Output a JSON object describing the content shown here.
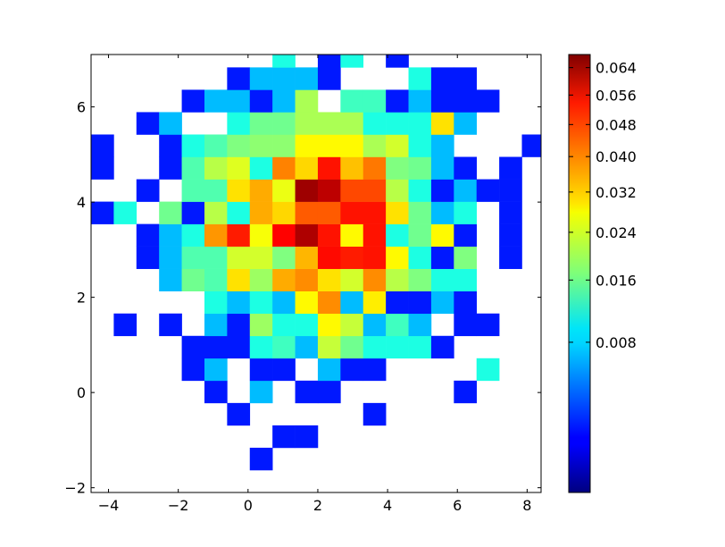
{
  "chart_data": {
    "type": "heatmap",
    "title": "",
    "xlabel": "",
    "ylabel": "",
    "xlim": [
      -4.5,
      8.4
    ],
    "ylim": [
      -2.1,
      7.1
    ],
    "x_ticks": [
      -4,
      -2,
      0,
      2,
      4,
      6,
      8
    ],
    "y_ticks": [
      -2,
      0,
      2,
      4,
      6
    ],
    "bins": {
      "x_start": -4.5,
      "x_width": 0.65,
      "y_start": -2.1,
      "y_width": 0.47,
      "nx": 20,
      "ny": 20
    },
    "colormap": "jet",
    "colorbar": {
      "scale": "sqrt",
      "vmin": 0.0,
      "vmax": 0.068,
      "ticks": [
        0.008,
        0.016,
        0.024,
        0.032,
        0.04,
        0.048,
        0.056,
        0.064
      ],
      "tick_labels": [
        "0.008",
        "0.016",
        "0.024",
        "0.032",
        "0.040",
        "0.048",
        "0.056",
        "0.064"
      ]
    },
    "cells": [
      [
        0.0,
        0.0,
        0.0,
        0.0,
        0.0,
        0.0,
        0.0,
        0.0,
        0.0,
        0.0,
        0.0,
        0.0,
        0.0,
        0.0,
        0.0,
        0.0,
        0.0,
        0.0,
        0.0,
        0.0
      ],
      [
        0.0,
        0.0,
        0.0,
        0.0,
        0.0,
        0.0,
        0.0,
        0.0015,
        0.0,
        0.0,
        0.0,
        0.0,
        0.0,
        0.0,
        0.0,
        0.0,
        0.0,
        0.0,
        0.0,
        0.0
      ],
      [
        0.0,
        0.0,
        0.0,
        0.0,
        0.0,
        0.0,
        0.0,
        0.0,
        0.0015,
        0.0015,
        0.0,
        0.0,
        0.0,
        0.0,
        0.0,
        0.0,
        0.0,
        0.0,
        0.0,
        0.0
      ],
      [
        0.0,
        0.0,
        0.0,
        0.0,
        0.0,
        0.0,
        0.0015,
        0.0,
        0.0,
        0.0,
        0.0,
        0.0,
        0.0015,
        0.0,
        0.0,
        0.0,
        0.0,
        0.0,
        0.0,
        0.0
      ],
      [
        0.0,
        0.0,
        0.0,
        0.0,
        0.0,
        0.0015,
        0.0,
        0.0065,
        0.0,
        0.0015,
        0.0015,
        0.0,
        0.0,
        0.0,
        0.0,
        0.0,
        0.0015,
        0.0,
        0.0,
        0.0
      ],
      [
        0.0,
        0.0,
        0.0,
        0.0,
        0.0015,
        0.0065,
        0.0,
        0.0015,
        0.0015,
        0.0,
        0.0065,
        0.0015,
        0.0015,
        0.0,
        0.0,
        0.0,
        0.0,
        0.011,
        0.0,
        0.0
      ],
      [
        0.0,
        0.0,
        0.0,
        0.0,
        0.0015,
        0.0015,
        0.0015,
        0.011,
        0.013,
        0.0065,
        0.022,
        0.016,
        0.011,
        0.011,
        0.011,
        0.0015,
        0.0,
        0.0,
        0.0,
        0.0
      ],
      [
        0.0,
        0.0015,
        0.0,
        0.0015,
        0.0,
        0.0065,
        0.0015,
        0.019,
        0.011,
        0.011,
        0.027,
        0.022,
        0.0065,
        0.013,
        0.0065,
        0.0,
        0.0015,
        0.0015,
        0.0,
        0.0
      ],
      [
        0.0,
        0.0,
        0.0,
        0.0,
        0.0,
        0.011,
        0.0065,
        0.011,
        0.0065,
        0.027,
        0.037,
        0.0065,
        0.028,
        0.0015,
        0.0015,
        0.0065,
        0.0015,
        0.0,
        0.0,
        0.0
      ],
      [
        0.0,
        0.0,
        0.0,
        0.0065,
        0.016,
        0.014,
        0.029,
        0.019,
        0.034,
        0.037,
        0.029,
        0.023,
        0.037,
        0.021,
        0.017,
        0.011,
        0.011,
        0.0,
        0.0,
        0.0
      ],
      [
        0.0,
        0.0,
        0.0015,
        0.0065,
        0.014,
        0.014,
        0.023,
        0.023,
        0.017,
        0.033,
        0.051,
        0.049,
        0.05,
        0.027,
        0.011,
        0.0015,
        0.017,
        0.0,
        0.0015,
        0.0
      ],
      [
        0.0,
        0.0,
        0.0015,
        0.0065,
        0.011,
        0.036,
        0.049,
        0.026,
        0.052,
        0.062,
        0.05,
        0.027,
        0.05,
        0.011,
        0.016,
        0.027,
        0.0015,
        0.0,
        0.0015,
        0.0
      ],
      [
        0.0015,
        0.011,
        0.0,
        0.016,
        0.0015,
        0.021,
        0.011,
        0.034,
        0.03,
        0.042,
        0.042,
        0.05,
        0.05,
        0.029,
        0.016,
        0.0065,
        0.011,
        0.0,
        0.0015,
        0.0
      ],
      [
        0.0,
        0.0,
        0.0015,
        0.0,
        0.014,
        0.014,
        0.029,
        0.034,
        0.025,
        0.064,
        0.06,
        0.044,
        0.044,
        0.021,
        0.011,
        0.0015,
        0.0065,
        0.0015,
        0.0015,
        0.0
      ],
      [
        0.0015,
        0.0,
        0.0,
        0.0015,
        0.014,
        0.021,
        0.024,
        0.011,
        0.038,
        0.03,
        0.05,
        0.032,
        0.039,
        0.017,
        0.016,
        0.0065,
        0.0015,
        0.0,
        0.0015,
        0.0
      ],
      [
        0.0015,
        0.0,
        0.0,
        0.0015,
        0.011,
        0.014,
        0.017,
        0.018,
        0.018,
        0.027,
        0.027,
        0.027,
        0.02,
        0.023,
        0.011,
        0.0065,
        0.0,
        0.0,
        0.0,
        0.0015
      ],
      [
        0.0,
        0.0,
        0.0015,
        0.0065,
        0.0,
        0.0,
        0.011,
        0.016,
        0.016,
        0.02,
        0.02,
        0.02,
        0.011,
        0.011,
        0.011,
        0.029,
        0.0065,
        0.0,
        0.0,
        0.0
      ],
      [
        0.0,
        0.0,
        0.0,
        0.0,
        0.0015,
        0.0065,
        0.0065,
        0.0015,
        0.0065,
        0.02,
        0.0,
        0.013,
        0.013,
        0.0015,
        0.0065,
        0.0015,
        0.0015,
        0.0015,
        0.0,
        0.0
      ],
      [
        0.0,
        0.0,
        0.0,
        0.0,
        0.0,
        0.0,
        0.0015,
        0.0065,
        0.0065,
        0.0065,
        0.0015,
        0.0,
        0.0,
        0.0,
        0.011,
        0.0015,
        0.0015,
        0.0,
        0.0,
        0.0
      ],
      [
        0.0,
        0.0,
        0.0,
        0.0,
        0.0,
        0.0,
        0.0,
        0.0,
        0.011,
        0.0,
        0.0015,
        0.011,
        0.0,
        0.0015,
        0.0,
        0.0,
        0.0,
        0.0,
        0.0,
        0.0
      ]
    ]
  }
}
